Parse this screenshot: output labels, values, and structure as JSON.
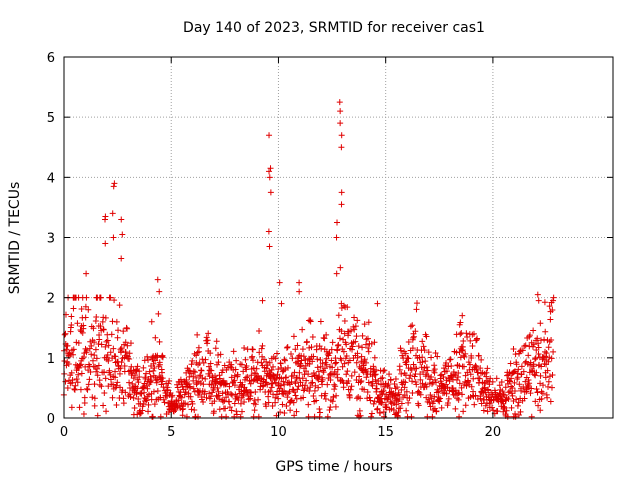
{
  "chart_data": {
    "type": "scatter",
    "title": "Day 140 of 2023, SRMTID for receiver cas1",
    "xlabel": "GPS time / hours",
    "ylabel": "SRMTID / TECUs",
    "xlim": [
      0,
      25.6
    ],
    "ylim": [
      0,
      6
    ],
    "x_ticks": [
      "0",
      "5",
      "10",
      "15",
      "20"
    ],
    "y_ticks": [
      "0",
      "1",
      "2",
      "3",
      "4",
      "5",
      "6"
    ],
    "grid": true,
    "marker": "+",
    "color": "#e00000",
    "envelope": {
      "x": [
        0,
        0.5,
        1.0,
        1.5,
        2.0,
        2.4,
        2.8,
        3.2,
        3.6,
        4.0,
        4.3,
        4.6,
        5.0,
        5.5,
        6.0,
        6.5,
        7.0,
        7.5,
        8.0,
        8.5,
        9.0,
        9.5,
        10.0,
        10.5,
        11.0,
        11.5,
        12.0,
        12.5,
        13.0,
        13.5,
        14.0,
        14.5,
        15.0,
        15.5,
        16.0,
        16.5,
        17.0,
        17.5,
        18.0,
        18.5,
        19.0,
        19.5,
        20.0,
        20.5,
        21.0,
        21.5,
        22.0,
        22.5,
        22.8
      ],
      "y": [
        0.9,
        1.1,
        1.0,
        1.2,
        1.1,
        1.0,
        0.9,
        0.6,
        0.4,
        0.6,
        0.9,
        0.5,
        0.2,
        0.4,
        0.6,
        0.7,
        0.6,
        0.5,
        0.5,
        0.6,
        0.8,
        0.6,
        0.5,
        0.6,
        0.7,
        0.8,
        0.7,
        0.8,
        0.9,
        0.9,
        0.8,
        0.6,
        0.4,
        0.35,
        0.8,
        0.9,
        0.6,
        0.5,
        0.6,
        0.8,
        0.9,
        0.5,
        0.3,
        0.3,
        0.6,
        0.7,
        0.8,
        0.9,
        1.0
      ]
    },
    "spikes": [
      {
        "x": 1.9,
        "y": [
          2.9,
          3.3,
          3.35
        ]
      },
      {
        "x": 2.3,
        "y": [
          3.0,
          3.4,
          3.85,
          3.9
        ]
      },
      {
        "x": 2.7,
        "y": [
          2.65,
          3.05,
          3.3
        ]
      },
      {
        "x": 4.4,
        "y": [
          2.1,
          2.3
        ]
      },
      {
        "x": 1.0,
        "y": [
          2.0,
          2.4
        ]
      },
      {
        "x": 9.3,
        "y": [
          1.95
        ]
      },
      {
        "x": 9.6,
        "y": [
          2.85,
          3.1,
          3.75,
          4.0,
          4.1,
          4.15,
          4.7
        ]
      },
      {
        "x": 10.1,
        "y": [
          1.9,
          2.25
        ]
      },
      {
        "x": 11.0,
        "y": [
          2.1,
          2.25
        ]
      },
      {
        "x": 12.7,
        "y": [
          2.4,
          3.0,
          3.25
        ]
      },
      {
        "x": 12.9,
        "y": [
          1.9,
          2.5,
          3.55,
          3.75,
          4.5,
          4.7,
          4.9,
          5.1,
          5.25
        ]
      },
      {
        "x": 14.6,
        "y": [
          1.9
        ]
      },
      {
        "x": 22.1,
        "y": [
          1.95,
          2.05
        ]
      },
      {
        "x": 22.8,
        "y": [
          1.95,
          2.0
        ]
      }
    ]
  }
}
